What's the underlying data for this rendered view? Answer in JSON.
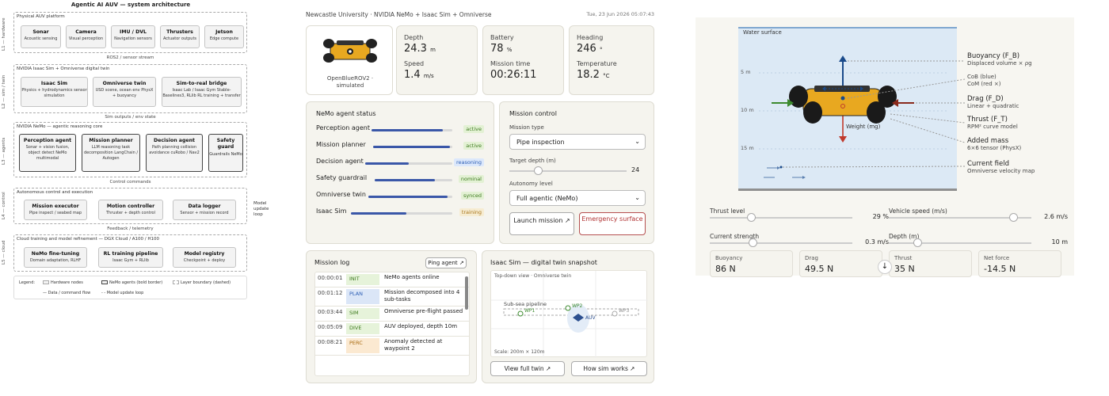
{
  "arch": {
    "title": "Agentic AI AUV — system architecture",
    "layers": [
      {
        "side": "L1 — hardware",
        "title": "Physical AUV platform",
        "nodes": [
          {
            "name": "Sonar",
            "desc": "Acoustic sensing"
          },
          {
            "name": "Camera",
            "desc": "Visual perception"
          },
          {
            "name": "IMU / DVL",
            "desc": "Navigation sensors"
          },
          {
            "name": "Thrusters",
            "desc": "Actuator outputs"
          },
          {
            "name": "Jetson",
            "desc": "Edge compute"
          }
        ]
      },
      {
        "side": "L2 — sim / twin",
        "title": "NVIDIA Isaac Sim + Omniverse digital twin",
        "nodes": [
          {
            "name": "Isaac Sim",
            "desc": "Physics + hydrodynamics sensor simulation"
          },
          {
            "name": "Omniverse twin",
            "desc": "USD scene, ocean env PhysX + buoyancy"
          },
          {
            "name": "Sim-to-real bridge",
            "desc": "Isaac Lab / Isaac Gym Stable-Baselines3, RLlib RL training + transfer"
          }
        ]
      },
      {
        "side": "L3 — agents",
        "title": "NVIDIA NeMo — agentic reasoning core",
        "nodes": [
          {
            "name": "Perception agent",
            "desc": "Sonar + vision fusion, object detect NeMo multimodal"
          },
          {
            "name": "Mission planner",
            "desc": "LLM reasoning task decomposition LangChain / Autogen"
          },
          {
            "name": "Decision agent",
            "desc": "Path planning collision avoidance cuRobo / Nav2"
          },
          {
            "name": "Safety guard",
            "desc": "Guardrails NeMo"
          }
        ]
      },
      {
        "side": "L4 — control",
        "title": "Autonomous control and execution",
        "nodes": [
          {
            "name": "Mission executor",
            "desc": "Pipe inspect / seabed map"
          },
          {
            "name": "Motion controller",
            "desc": "Thruster + depth control"
          },
          {
            "name": "Data logger",
            "desc": "Sensor + mission record"
          }
        ]
      },
      {
        "side": "L5 — cloud",
        "title": "Cloud training and model refinement — DGX Cloud / A100 / H100",
        "nodes": [
          {
            "name": "NeMo fine-tuning",
            "desc": "Domain adaptation, RLHF"
          },
          {
            "name": "RL training pipeline",
            "desc": "Isaac Gym + RLlib"
          },
          {
            "name": "Model registry",
            "desc": "Checkpoint + deploy"
          }
        ]
      }
    ],
    "connectors": [
      "ROS2 / sensor stream",
      "Sim outputs / env state",
      "Control commands",
      "Feedback / telemetry"
    ],
    "side_note": "Model update loop",
    "legend": {
      "title": "Legend:",
      "hw": "Hardware nodes",
      "agents": "NeMo agents (bold border)",
      "boundary": "Layer boundary (dashed)",
      "flow": "Data / command flow",
      "loop": "Model update loop"
    }
  },
  "header": {
    "title": "Newcastle University · NVIDIA NeMo + Isaac Sim + Omniverse",
    "timestamp": "Tue, 23 Jun 2026 05:07:43"
  },
  "vehicle": {
    "name": "OpenBlueROV2 · simulated"
  },
  "telemetry": {
    "depth_label": "Depth",
    "depth": "24.3",
    "depth_unit": "m",
    "speed_label": "Speed",
    "speed": "1.4",
    "speed_unit": "m/s",
    "battery_label": "Battery",
    "battery": "78",
    "battery_unit": "%",
    "time_label": "Mission time",
    "time": "00:26:11",
    "heading_label": "Heading",
    "heading": "246",
    "heading_unit": "°",
    "temp_label": "Temperature",
    "temp": "18.2",
    "temp_unit": "°C"
  },
  "agents": {
    "title": "NeMo agent status",
    "items": [
      {
        "name": "Perception agent",
        "status": "active",
        "level": 0.88
      },
      {
        "name": "Mission planner",
        "status": "active",
        "level": 0.97
      },
      {
        "name": "Decision agent",
        "status": "reasoning",
        "level": 0.5
      },
      {
        "name": "Safety guardrail",
        "status": "nominal",
        "level": 0.78
      },
      {
        "name": "Omniverse twin",
        "status": "synced",
        "level": 0.94
      },
      {
        "name": "Isaac Sim",
        "status": "training",
        "level": 0.55
      }
    ]
  },
  "mission": {
    "title": "Mission control",
    "type_label": "Mission type",
    "type_value": "Pipe inspection",
    "depth_label": "Target depth (m)",
    "depth_value": "24",
    "depth_level": 0.24,
    "autonomy_label": "Autonomy level",
    "autonomy_value": "Full agentic (NeMo)",
    "launch": "Launch mission ↗",
    "emergency": "Emergency surface"
  },
  "log": {
    "title": "Mission log",
    "ping": "Ping agent ↗",
    "rows": [
      {
        "time": "00:00:01",
        "tag": "INIT",
        "msg": "NeMo agents online"
      },
      {
        "time": "00:01:12",
        "tag": "PLAN",
        "msg": "Mission decomposed into 4 sub-tasks"
      },
      {
        "time": "00:03:44",
        "tag": "SIM",
        "msg": "Omniverse pre-flight passed"
      },
      {
        "time": "00:05:09",
        "tag": "DIVE",
        "msg": "AUV deployed, depth 10m"
      },
      {
        "time": "00:08:21",
        "tag": "PERC",
        "msg": "Anomaly detected at waypoint 2"
      }
    ]
  },
  "twin": {
    "title": "Isaac Sim — digital twin snapshot",
    "view": "Top-down view · Omniverse twin",
    "pipeline": "Sub-sea pipeline",
    "wp1": "WP1",
    "wp2": "WP2",
    "wp3": "WP3",
    "auv": "AUV",
    "scale": "Scale: 200m × 120m",
    "btn_full": "View full twin ↗",
    "btn_how": "How sim works ↗"
  },
  "forces": {
    "water": "Water surface",
    "d5": "5 m",
    "d10": "10 m",
    "d15": "15 m",
    "weight": "Weight (mg)",
    "buoy_t": "Buoyancy (F_B)",
    "buoy_d": "Displaced volume × ρg",
    "cob": "CoB (blue)",
    "com": "CoM (red ×)",
    "drag_t": "Drag (F_D)",
    "drag_d": "Linear + quadratic",
    "thrust_t": "Thrust (F_T)",
    "thrust_d": "RPM² curve model",
    "mass_t": "Added mass",
    "mass_d": "6×6 tensor (PhysX)",
    "cur_t": "Current field",
    "cur_d": "Omniverse velocity map"
  },
  "sliders": [
    {
      "label": "Thrust level",
      "value": "29 %",
      "level": 0.29
    },
    {
      "label": "Vehicle speed (m/s)",
      "value": "2.6 m/s",
      "level": 0.87
    },
    {
      "label": "Current strength",
      "value": "0.3 m/s",
      "level": 0.3
    },
    {
      "label": "Depth (m)",
      "value": "10 m",
      "level": 0.2
    }
  ],
  "summary": [
    {
      "label": "Buoyancy",
      "value": "86 N"
    },
    {
      "label": "Drag",
      "value": "49.5 N"
    },
    {
      "label": "Thrust",
      "value": "35 N"
    },
    {
      "label": "Net force",
      "value": "-14.5 N"
    }
  ],
  "colors": {
    "accent": "#3a57a8",
    "water": "#dce9f5",
    "hull": "#e8a820",
    "drag": "#c0392b",
    "thrust": "#3c8a2e",
    "buoyancy": "#1a4a8a"
  }
}
